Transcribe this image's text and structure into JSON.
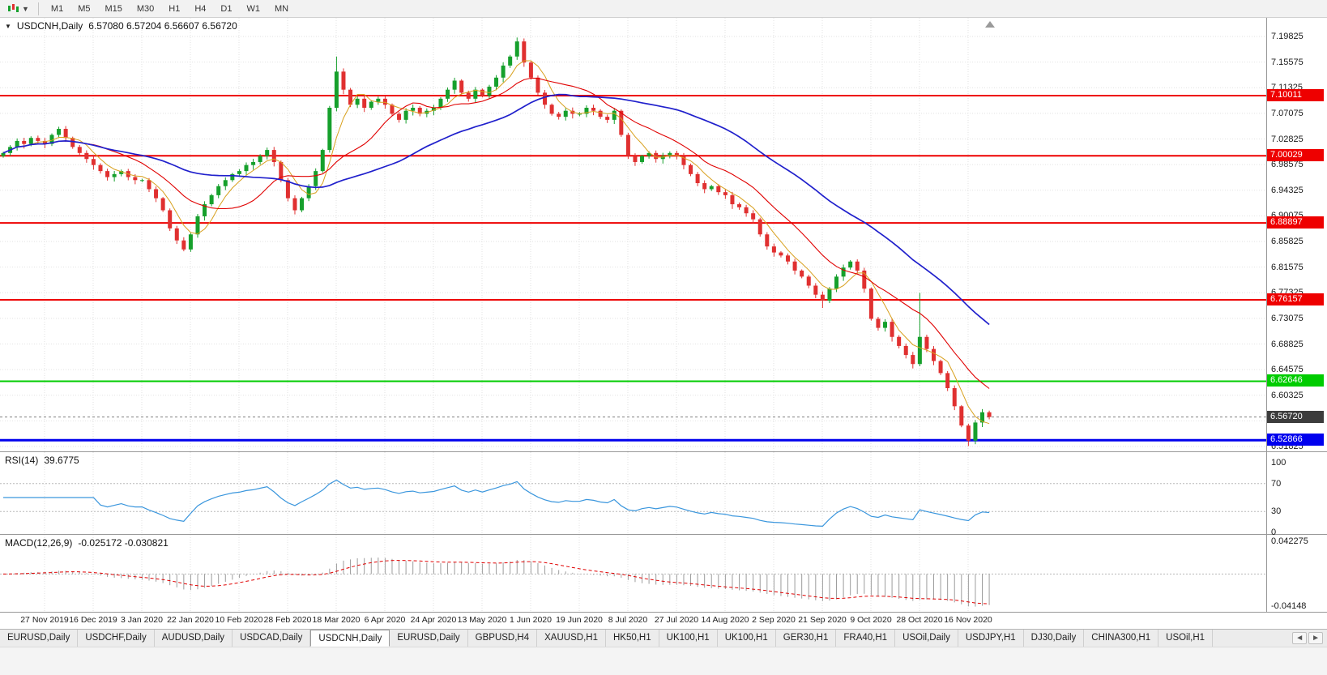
{
  "toolbar": {
    "chart_type_icon": "candlestick-chart-icon",
    "timeframes": [
      "M1",
      "M5",
      "M15",
      "M30",
      "H1",
      "H4",
      "D1",
      "W1",
      "MN"
    ]
  },
  "chart": {
    "title": "USDCNH,Daily",
    "ohlc": "6.57080 6.57204 6.56607 6.56720",
    "open": "6.57080",
    "high": "6.57204",
    "low": "6.56607",
    "close": "6.56720"
  },
  "price_axis": {
    "labels": [
      "7.19825",
      "7.15575",
      "7.11325",
      "7.07075",
      "7.02825",
      "6.98575",
      "6.94325",
      "6.90075",
      "6.85825",
      "6.81575",
      "6.77325",
      "6.73075",
      "6.68825",
      "6.64575",
      "6.60325",
      "6.56075",
      "6.51825"
    ]
  },
  "time_axis": {
    "labels": [
      "27 Nov 2019",
      "16 Dec 2019",
      "3 Jan 2020",
      "22 Jan 2020",
      "10 Feb 2020",
      "28 Feb 2020",
      "18 Mar 2020",
      "6 Apr 2020",
      "24 Apr 2020",
      "13 May 2020",
      "1 Jun 2020",
      "19 Jun 2020",
      "8 Jul 2020",
      "27 Jul 2020",
      "14 Aug 2020",
      "2 Sep 2020",
      "21 Sep 2020",
      "9 Oct 2020",
      "28 Oct 2020",
      "16 Nov 2020"
    ]
  },
  "rsi": {
    "name": "RSI(14)",
    "value": "39.6775",
    "levels": [
      {
        "label": "100",
        "v": 100
      },
      {
        "label": "70",
        "v": 70
      },
      {
        "label": "30",
        "v": 30
      },
      {
        "label": "0",
        "v": 0
      }
    ]
  },
  "macd": {
    "name": "MACD(12,26,9)",
    "values": "-0.025172 -0.030821",
    "axis_top": {
      "label": "0.042275",
      "v": 0.042275
    },
    "axis_bottom": {
      "label": "-0.04148",
      "v": -0.04148
    }
  },
  "tabbar": {
    "active_index": 4,
    "items": [
      "EURUSD,Daily",
      "USDCHF,Daily",
      "AUDUSD,Daily",
      "USDCAD,Daily",
      "USDCNH,Daily",
      "EURUSD,Daily",
      "GBPUSD,H4",
      "XAUUSD,H1",
      "HK50,H1",
      "UK100,H1",
      "UK100,H1",
      "GER30,H1",
      "FRA40,H1",
      "USOil,Daily",
      "USDJPY,H1",
      "DJ30,Daily",
      "CHINA300,H1",
      "USOil,H1"
    ],
    "scroll_left": "◄",
    "scroll_right": "►"
  },
  "colors": {
    "up": "#16a02c",
    "down": "#e03030",
    "ma_fast": "#d8a01d",
    "ma_mid": "#e00000",
    "ma_slow": "#2020cc",
    "rsi_line": "#3a96dd",
    "macd_hist": "#9c9c9c",
    "macd_signal": "#e00000",
    "grid": "#e2e2e2",
    "level_silver": "#b8b8b8",
    "current_badge": "#3c3c3c"
  },
  "chart_data": {
    "type": "candlestick",
    "symbol": "USDCNH",
    "period": "Daily",
    "ylim": [
      6.51825,
      7.19825
    ],
    "grid": true,
    "first_open": 7.0,
    "closes": [
      7.005,
      7.015,
      7.025,
      7.02,
      7.03,
      7.025,
      7.02,
      7.035,
      7.045,
      7.03,
      7.015,
      7.005,
      6.995,
      6.985,
      6.975,
      6.965,
      6.97,
      6.975,
      6.965,
      6.96,
      6.96,
      6.945,
      6.93,
      6.91,
      6.88,
      6.86,
      6.845,
      6.87,
      6.9,
      6.92,
      6.935,
      6.95,
      6.96,
      6.97,
      6.975,
      6.985,
      6.99,
      7.0,
      7.01,
      6.99,
      6.96,
      6.93,
      6.91,
      6.93,
      6.95,
      6.975,
      7.01,
      7.08,
      7.14,
      7.11,
      7.085,
      7.095,
      7.08,
      7.09,
      7.095,
      7.085,
      7.07,
      7.06,
      7.075,
      7.08,
      7.07,
      7.075,
      7.08,
      7.095,
      7.11,
      7.125,
      7.105,
      7.095,
      7.11,
      7.1,
      7.115,
      7.13,
      7.15,
      7.165,
      7.19,
      7.155,
      7.13,
      7.105,
      7.085,
      7.07,
      7.065,
      7.075,
      7.07,
      7.07,
      7.08,
      7.075,
      7.065,
      7.06,
      7.075,
      7.035,
      7.0,
      6.99,
      7.0,
      7.005,
      6.995,
      7.0,
      7.005,
      7.0,
      6.985,
      6.97,
      6.955,
      6.945,
      6.95,
      6.94,
      6.935,
      6.92,
      6.915,
      6.905,
      6.895,
      6.87,
      6.85,
      6.84,
      6.835,
      6.825,
      6.81,
      6.8,
      6.785,
      6.77,
      6.76,
      6.78,
      6.8,
      6.815,
      6.825,
      6.81,
      6.78,
      6.73,
      6.715,
      6.725,
      6.7,
      6.685,
      6.67,
      6.655,
      6.7,
      6.68,
      6.66,
      6.64,
      6.615,
      6.585,
      6.553,
      6.528,
      6.558,
      6.575,
      6.5672
    ],
    "wick_overrides": {
      "26": {
        "low": 6.842
      },
      "48": {
        "high": 7.165
      },
      "74": {
        "high": 7.1965
      },
      "118": {
        "low": 6.748
      },
      "132": {
        "high": 6.773
      },
      "139": {
        "low": 6.519
      }
    },
    "hlines": [
      {
        "label": "7.10011",
        "value": 7.10011,
        "color": "#ee0000",
        "width": 2
      },
      {
        "label": "7.00029",
        "value": 7.00029,
        "color": "#ee0000",
        "width": 2
      },
      {
        "label": "6.88897",
        "value": 6.88897,
        "color": "#ee0000",
        "width": 2
      },
      {
        "label": "6.76157",
        "value": 6.76157,
        "color": "#ee0000",
        "width": 2
      },
      {
        "label": "6.62646",
        "value": 6.62646,
        "color": "#00cc00",
        "width": 2
      },
      {
        "label": "6.52866",
        "value": 6.52866,
        "color": "#0000ee",
        "width": 3
      }
    ],
    "last_price": {
      "label": "6.56720",
      "value": 6.5672
    }
  }
}
